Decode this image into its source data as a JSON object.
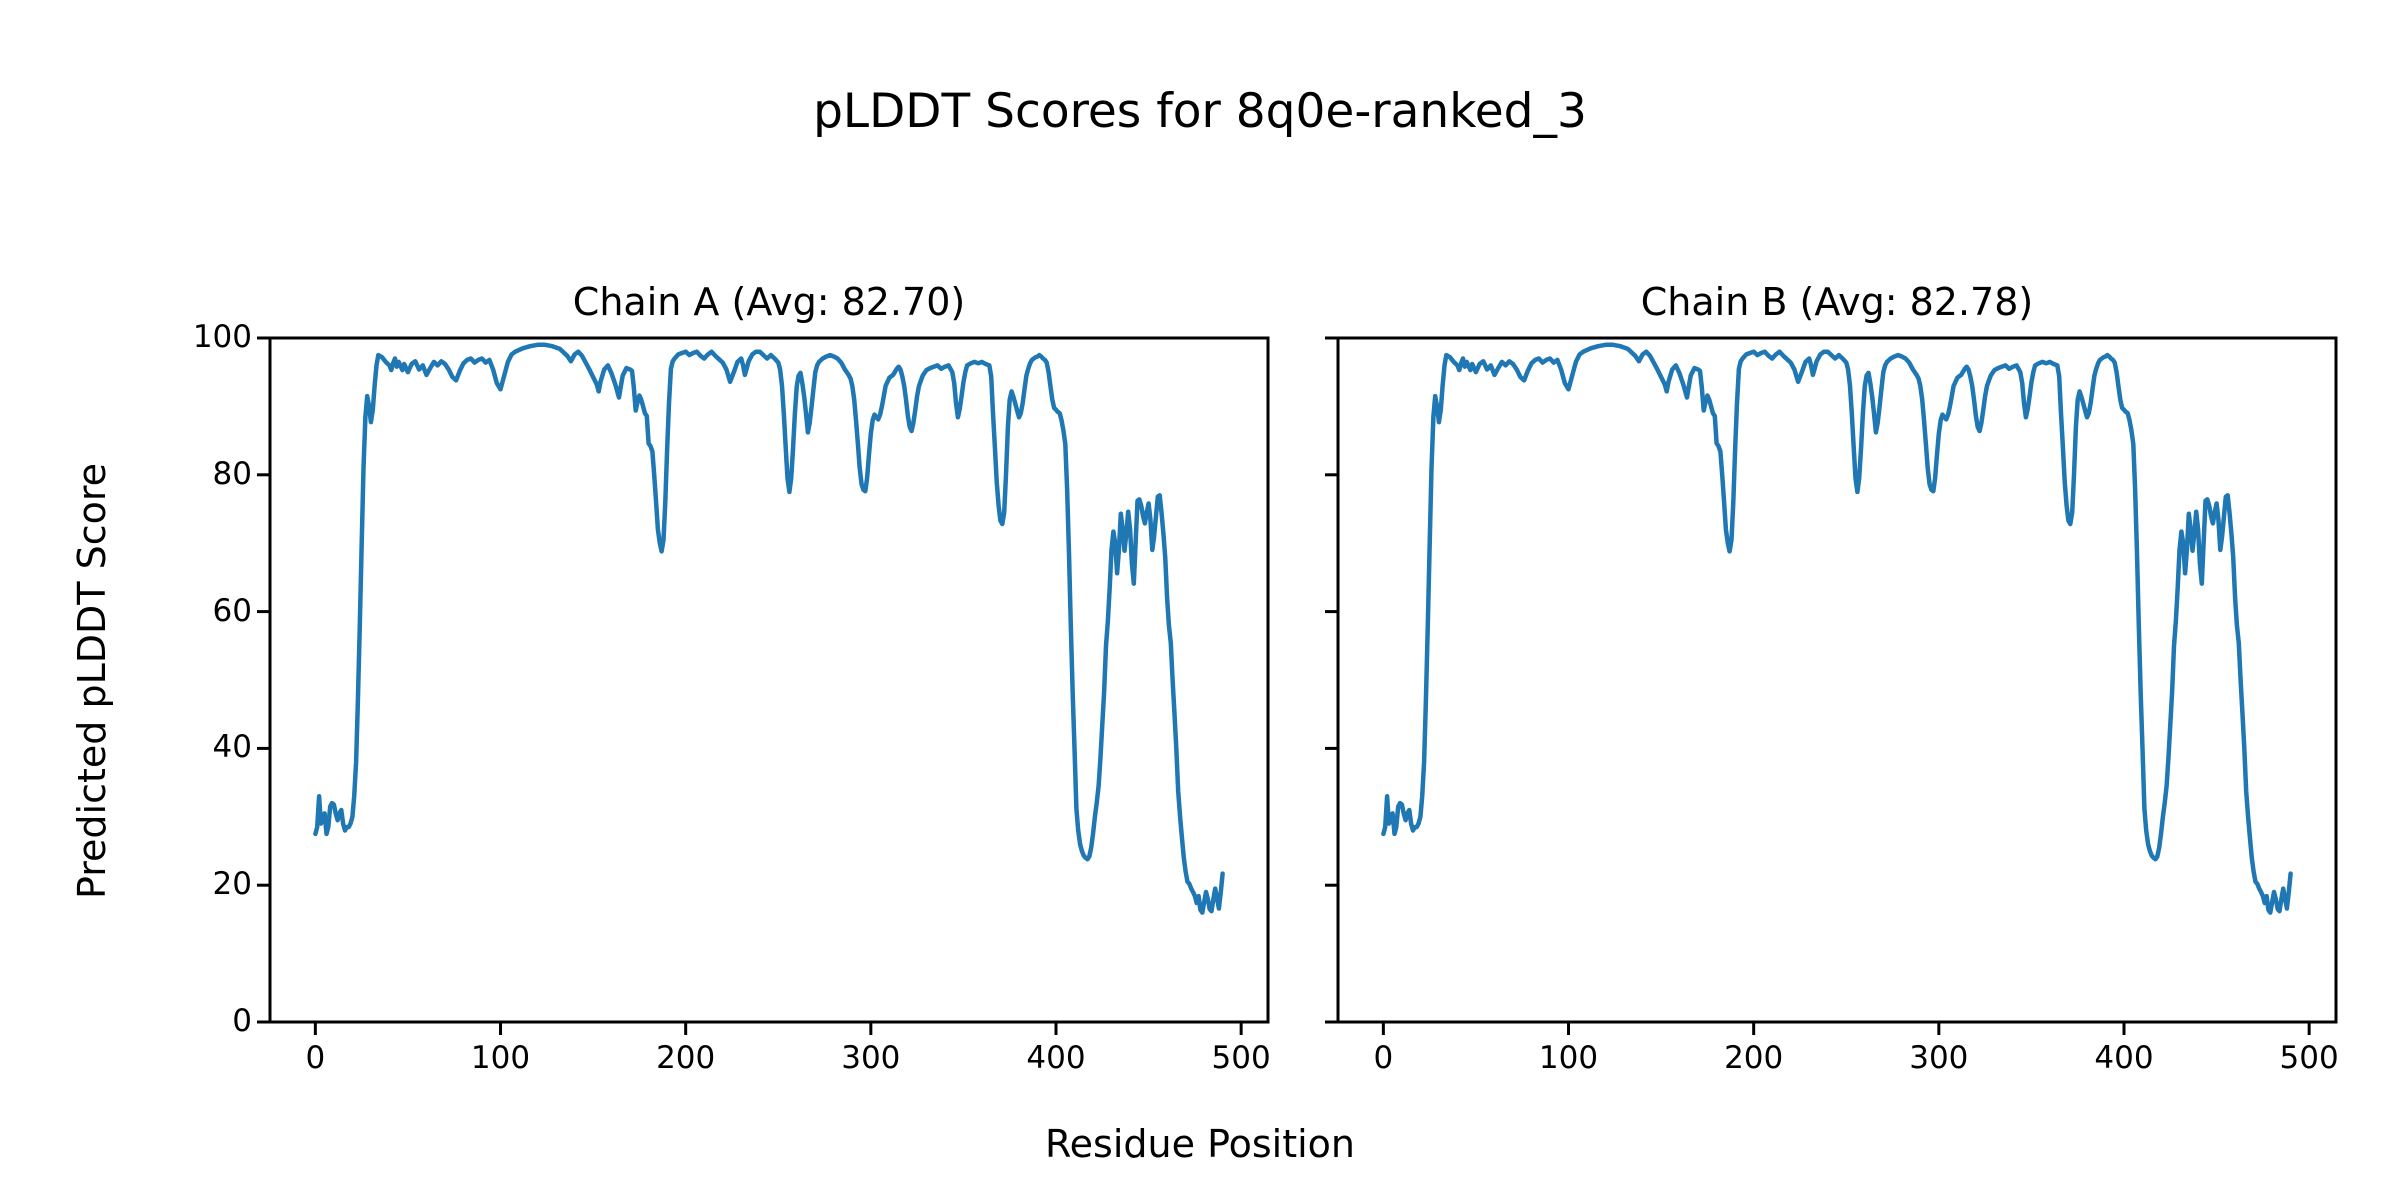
{
  "figure": {
    "title": "pLDDT Scores for 8q0e-ranked_3",
    "xlabel": "Residue Position",
    "ylabel": "Predicted pLDDT Score"
  },
  "chart_data": {
    "type": "line",
    "title": "pLDDT Scores for 8q0e-ranked_3",
    "xlabel": "Residue Position",
    "ylabel": "Predicted pLDDT Score",
    "line_color": "#1f77b4",
    "axis_color": "#000000",
    "background_color": "#ffffff",
    "grid": false,
    "legend_position": "none",
    "xlim": [
      -24.5,
      514.5
    ],
    "ylim": [
      0,
      100
    ],
    "x_ticks": [
      0,
      100,
      200,
      300,
      400,
      500
    ],
    "y_ticks": [
      0,
      20,
      40,
      60,
      80,
      100
    ],
    "subplots": [
      {
        "title": "Chain A (Avg: 82.70)",
        "chain": "A",
        "avg_plddt": 82.7,
        "series": "shared_profile"
      },
      {
        "title": "Chain B (Avg: 82.78)",
        "chain": "B",
        "avg_plddt": 82.78,
        "series": "shared_profile"
      }
    ],
    "profile_note": "Chains A and B show visually identical pLDDT profiles; points are [residue_position, plddt_score]",
    "shared_profile": [
      [
        0,
        27.5
      ],
      [
        1,
        28.5
      ],
      [
        2,
        33
      ],
      [
        3,
        29
      ],
      [
        4,
        30
      ],
      [
        5,
        30.5
      ],
      [
        6,
        27.5
      ],
      [
        7,
        28.5
      ],
      [
        8,
        31.5
      ],
      [
        9,
        32
      ],
      [
        10,
        31.8
      ],
      [
        11,
        30.5
      ],
      [
        12,
        29.5
      ],
      [
        13,
        30.5
      ],
      [
        14,
        31
      ],
      [
        15,
        29
      ],
      [
        16,
        28
      ],
      [
        17,
        28.5
      ],
      [
        18,
        28.5
      ],
      [
        19,
        29
      ],
      [
        20,
        30
      ],
      [
        21,
        33
      ],
      [
        22,
        38
      ],
      [
        23,
        47
      ],
      [
        24,
        58
      ],
      [
        25,
        70
      ],
      [
        26,
        81
      ],
      [
        27,
        88.5
      ],
      [
        28,
        91.5
      ],
      [
        29,
        90
      ],
      [
        30,
        87.7
      ],
      [
        31,
        89.5
      ],
      [
        32,
        93
      ],
      [
        33,
        96
      ],
      [
        34,
        97.5
      ],
      [
        36,
        97.2
      ],
      [
        38,
        96.5
      ],
      [
        40,
        96
      ],
      [
        41,
        95.3
      ],
      [
        42,
        96.3
      ],
      [
        43,
        97
      ],
      [
        44,
        95.8
      ],
      [
        45,
        96.5
      ],
      [
        47,
        95.3
      ],
      [
        48,
        96.2
      ],
      [
        50,
        95
      ],
      [
        52,
        96.2
      ],
      [
        54,
        96.6
      ],
      [
        56,
        95.4
      ],
      [
        58,
        96
      ],
      [
        60,
        94.6
      ],
      [
        62,
        95.6
      ],
      [
        64,
        96.5
      ],
      [
        66,
        96
      ],
      [
        68,
        96.6
      ],
      [
        70,
        96.2
      ],
      [
        72,
        95.4
      ],
      [
        74,
        94.3
      ],
      [
        76,
        93.8
      ],
      [
        78,
        95.2
      ],
      [
        80,
        96.3
      ],
      [
        82,
        96.8
      ],
      [
        84,
        97
      ],
      [
        86,
        96.4
      ],
      [
        88,
        96.8
      ],
      [
        90,
        97
      ],
      [
        92,
        96.4
      ],
      [
        94,
        96.8
      ],
      [
        96,
        95.4
      ],
      [
        98,
        93.4
      ],
      [
        100,
        92.5
      ],
      [
        102,
        94.5
      ],
      [
        104,
        96.5
      ],
      [
        106,
        97.6
      ],
      [
        108,
        98
      ],
      [
        112,
        98.5
      ],
      [
        116,
        98.8
      ],
      [
        120,
        99
      ],
      [
        124,
        99
      ],
      [
        128,
        98.8
      ],
      [
        132,
        98.4
      ],
      [
        136,
        97.4
      ],
      [
        138,
        96.6
      ],
      [
        140,
        97.6
      ],
      [
        142,
        98
      ],
      [
        144,
        97.4
      ],
      [
        146,
        96.4
      ],
      [
        148,
        95.4
      ],
      [
        150,
        94.3
      ],
      [
        152,
        93.2
      ],
      [
        153,
        92.2
      ],
      [
        154,
        93.6
      ],
      [
        156,
        95.4
      ],
      [
        158,
        96
      ],
      [
        160,
        94.8
      ],
      [
        162,
        93.2
      ],
      [
        164,
        91.3
      ],
      [
        165,
        93
      ],
      [
        166,
        94.5
      ],
      [
        168,
        95.6
      ],
      [
        170,
        95.4
      ],
      [
        171,
        95.2
      ],
      [
        172,
        92.8
      ],
      [
        173,
        89.4
      ],
      [
        174,
        90.6
      ],
      [
        175,
        91.6
      ],
      [
        176,
        91
      ],
      [
        177,
        90
      ],
      [
        178,
        89
      ],
      [
        179,
        88.6
      ],
      [
        180,
        84.6
      ],
      [
        181,
        84.2
      ],
      [
        182,
        83.4
      ],
      [
        183,
        80
      ],
      [
        184,
        76
      ],
      [
        185,
        72
      ],
      [
        186,
        70
      ],
      [
        187,
        68.8
      ],
      [
        188,
        70.5
      ],
      [
        189,
        76
      ],
      [
        190,
        84
      ],
      [
        191,
        90.5
      ],
      [
        192,
        95.5
      ],
      [
        193,
        96.6
      ],
      [
        194,
        97
      ],
      [
        196,
        97.6
      ],
      [
        198,
        97.8
      ],
      [
        200,
        98
      ],
      [
        202,
        97.5
      ],
      [
        204,
        97.8
      ],
      [
        206,
        98
      ],
      [
        208,
        97.4
      ],
      [
        210,
        97
      ],
      [
        212,
        97.6
      ],
      [
        214,
        98
      ],
      [
        216,
        97.4
      ],
      [
        218,
        96.9
      ],
      [
        220,
        96.4
      ],
      [
        222,
        95.4
      ],
      [
        224,
        93.6
      ],
      [
        226,
        95
      ],
      [
        228,
        96.5
      ],
      [
        230,
        97
      ],
      [
        231,
        96
      ],
      [
        232,
        94.6
      ],
      [
        233,
        95.6
      ],
      [
        234,
        96.6
      ],
      [
        236,
        97.6
      ],
      [
        238,
        98
      ],
      [
        240,
        98
      ],
      [
        242,
        97.5
      ],
      [
        244,
        97
      ],
      [
        246,
        97.5
      ],
      [
        248,
        97
      ],
      [
        250,
        96.4
      ],
      [
        251,
        95.4
      ],
      [
        252,
        93
      ],
      [
        253,
        89
      ],
      [
        254,
        84
      ],
      [
        255,
        79.5
      ],
      [
        256,
        77.5
      ],
      [
        257,
        79.5
      ],
      [
        258,
        84
      ],
      [
        259,
        89
      ],
      [
        260,
        93
      ],
      [
        261,
        94.5
      ],
      [
        262,
        94.9
      ],
      [
        263,
        93.4
      ],
      [
        264,
        91.4
      ],
      [
        265,
        89
      ],
      [
        266,
        86.2
      ],
      [
        267,
        87.6
      ],
      [
        268,
        90
      ],
      [
        269,
        92.5
      ],
      [
        270,
        95
      ],
      [
        271,
        96
      ],
      [
        272,
        96.5
      ],
      [
        274,
        97
      ],
      [
        276,
        97.3
      ],
      [
        278,
        97.5
      ],
      [
        280,
        97.3
      ],
      [
        282,
        97
      ],
      [
        284,
        96.4
      ],
      [
        286,
        95.4
      ],
      [
        288,
        94.6
      ],
      [
        289,
        94.1
      ],
      [
        290,
        93
      ],
      [
        291,
        91
      ],
      [
        292,
        88
      ],
      [
        293,
        84.5
      ],
      [
        294,
        81
      ],
      [
        295,
        78.6
      ],
      [
        296,
        77.8
      ],
      [
        297,
        77.6
      ],
      [
        298,
        79.5
      ],
      [
        299,
        83
      ],
      [
        300,
        86
      ],
      [
        301,
        88
      ],
      [
        302,
        88.8
      ],
      [
        303,
        88.4
      ],
      [
        304,
        88.1
      ],
      [
        305,
        88.8
      ],
      [
        306,
        90
      ],
      [
        307,
        91.5
      ],
      [
        308,
        93
      ],
      [
        310,
        94.2
      ],
      [
        312,
        94.6
      ],
      [
        314,
        95.5
      ],
      [
        315,
        95.8
      ],
      [
        316,
        95.4
      ],
      [
        317,
        94.4
      ],
      [
        318,
        93
      ],
      [
        319,
        91
      ],
      [
        320,
        88.6
      ],
      [
        321,
        87
      ],
      [
        322,
        86.4
      ],
      [
        323,
        87.6
      ],
      [
        324,
        89.5
      ],
      [
        325,
        91.5
      ],
      [
        326,
        93
      ],
      [
        328,
        94.5
      ],
      [
        330,
        95.3
      ],
      [
        332,
        95.6
      ],
      [
        334,
        95.8
      ],
      [
        336,
        96
      ],
      [
        338,
        95.5
      ],
      [
        340,
        95.8
      ],
      [
        342,
        96
      ],
      [
        344,
        95
      ],
      [
        345,
        93.4
      ],
      [
        346,
        90.5
      ],
      [
        347,
        88.4
      ],
      [
        348,
        89.6
      ],
      [
        349,
        91.5
      ],
      [
        350,
        93.5
      ],
      [
        351,
        95
      ],
      [
        352,
        96
      ],
      [
        354,
        96.3
      ],
      [
        356,
        96.5
      ],
      [
        358,
        96.3
      ],
      [
        360,
        96.5
      ],
      [
        362,
        96.2
      ],
      [
        364,
        96
      ],
      [
        365,
        94.4
      ],
      [
        366,
        89
      ],
      [
        367,
        84
      ],
      [
        368,
        79
      ],
      [
        369,
        75.5
      ],
      [
        370,
        73.3
      ],
      [
        371,
        72.8
      ],
      [
        372,
        74.5
      ],
      [
        373,
        80
      ],
      [
        374,
        87
      ],
      [
        375,
        91
      ],
      [
        376,
        92.2
      ],
      [
        377,
        91.4
      ],
      [
        378,
        90.4
      ],
      [
        379,
        89.4
      ],
      [
        380,
        88.4
      ],
      [
        381,
        89
      ],
      [
        382,
        90.5
      ],
      [
        383,
        92.5
      ],
      [
        384,
        94.5
      ],
      [
        385,
        95.5
      ],
      [
        386,
        96.3
      ],
      [
        387,
        96.8
      ],
      [
        388,
        97
      ],
      [
        389,
        97.2
      ],
      [
        390,
        97.3
      ],
      [
        391,
        97.5
      ],
      [
        392,
        97.3
      ],
      [
        393,
        97
      ],
      [
        394,
        96.8
      ],
      [
        395,
        96.4
      ],
      [
        396,
        95
      ],
      [
        397,
        93
      ],
      [
        398,
        91
      ],
      [
        399,
        89.8
      ],
      [
        400,
        89.5
      ],
      [
        401,
        89.2
      ],
      [
        402,
        89
      ],
      [
        403,
        88
      ],
      [
        404,
        86.5
      ],
      [
        405,
        84.5
      ],
      [
        406,
        78
      ],
      [
        407,
        68.5
      ],
      [
        408,
        58
      ],
      [
        409,
        48
      ],
      [
        410,
        40
      ],
      [
        411,
        31.2
      ],
      [
        412,
        28
      ],
      [
        413,
        26
      ],
      [
        414,
        25
      ],
      [
        415,
        24.3
      ],
      [
        416,
        24
      ],
      [
        417,
        23.8
      ],
      [
        418,
        24.2
      ],
      [
        419,
        25.5
      ],
      [
        420,
        27.5
      ],
      [
        421,
        30
      ],
      [
        422,
        32
      ],
      [
        423,
        34.5
      ],
      [
        424,
        38.5
      ],
      [
        425,
        43.5
      ],
      [
        426,
        48.2
      ],
      [
        427,
        55
      ],
      [
        428,
        58.5
      ],
      [
        429,
        63.5
      ],
      [
        430,
        69
      ],
      [
        431,
        71.7
      ],
      [
        432,
        70
      ],
      [
        433,
        65.6
      ],
      [
        434,
        69
      ],
      [
        435,
        74.3
      ],
      [
        436,
        72
      ],
      [
        437,
        68.9
      ],
      [
        438,
        71.5
      ],
      [
        439,
        74.6
      ],
      [
        440,
        72
      ],
      [
        441,
        67
      ],
      [
        442,
        64.1
      ],
      [
        443,
        70
      ],
      [
        444,
        76.2
      ],
      [
        445,
        76.4
      ],
      [
        446,
        75.5
      ],
      [
        447,
        74
      ],
      [
        448,
        72.9
      ],
      [
        449,
        74.5
      ],
      [
        450,
        75.8
      ],
      [
        451,
        73.5
      ],
      [
        452,
        69
      ],
      [
        453,
        71
      ],
      [
        454,
        74
      ],
      [
        455,
        76.8
      ],
      [
        456,
        77
      ],
      [
        457,
        74.5
      ],
      [
        458,
        71.4
      ],
      [
        459,
        68
      ],
      [
        460,
        62
      ],
      [
        461,
        58
      ],
      [
        462,
        55.4
      ],
      [
        463,
        50
      ],
      [
        464,
        45
      ],
      [
        465,
        40
      ],
      [
        466,
        33.7
      ],
      [
        467,
        30
      ],
      [
        468,
        27
      ],
      [
        469,
        24
      ],
      [
        470,
        22
      ],
      [
        471,
        20.5
      ],
      [
        472,
        20.2
      ],
      [
        473,
        19.5
      ],
      [
        474,
        19
      ],
      [
        475,
        18.4
      ],
      [
        476,
        17.4
      ],
      [
        477,
        18.4
      ],
      [
        478,
        16.4
      ],
      [
        479,
        16
      ],
      [
        480,
        17.5
      ],
      [
        481,
        19
      ],
      [
        482,
        18
      ],
      [
        483,
        16.5
      ],
      [
        484,
        16.2
      ],
      [
        485,
        18
      ],
      [
        486,
        19.5
      ],
      [
        487,
        18
      ],
      [
        488,
        16.6
      ],
      [
        489,
        19
      ],
      [
        490,
        21.7
      ]
    ]
  }
}
